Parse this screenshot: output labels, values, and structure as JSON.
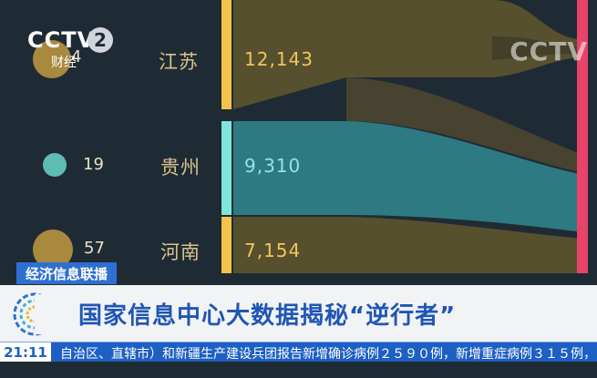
{
  "logo": {
    "brand": "CCTV",
    "channel_number": "2",
    "channel_name": "财经"
  },
  "watermark": "CCTV",
  "rows": [
    {
      "rank": "4",
      "province": "江苏",
      "value": "12,143",
      "circle_color": "#a8893d",
      "bar_color": "#f2c24a",
      "flow_color": "#57502f",
      "value_style": "gold"
    },
    {
      "rank": "19",
      "province": "贵州",
      "value": "9,310",
      "circle_color": "#5fbcb4",
      "bar_color": "#7fe6dd",
      "flow_color": "#2d7a83",
      "value_style": "teal"
    },
    {
      "rank": "57",
      "province": "河南",
      "value": "7,154",
      "circle_color": "#a8893d",
      "bar_color": "#f2c24a",
      "flow_color": "#57502f",
      "value_style": "gold"
    }
  ],
  "lower_third": {
    "program": "经济信息联播",
    "headline": "国家信息中心大数据揭秘“逆行者”",
    "clock": "21:11",
    "ticker": "自治区、直辖市）和新疆生产建设兵团报告新增确诊病例２５９０例，新增重症病例３１５例，"
  },
  "colors": {
    "background": "#1f2b34",
    "right_stripe": "#e8436a"
  }
}
